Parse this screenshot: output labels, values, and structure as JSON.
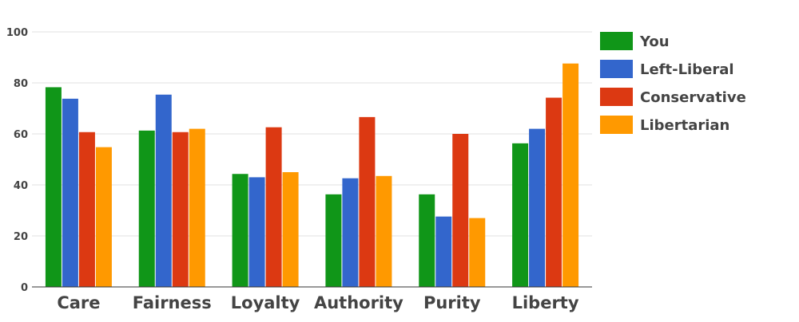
{
  "chart_data": {
    "type": "bar",
    "title": "",
    "xlabel": "",
    "ylabel": "",
    "ylim": [
      0,
      100
    ],
    "yticks": [
      0,
      20,
      40,
      60,
      80,
      100
    ],
    "grid": true,
    "legend_position": "right",
    "categories": [
      "Care",
      "Fairness",
      "Loyalty",
      "Authority",
      "Purity",
      "Liberty"
    ],
    "series": [
      {
        "name": "You",
        "color": "#109618",
        "values": [
          78.3,
          61.3,
          44.3,
          36.3,
          36.3,
          56.3
        ]
      },
      {
        "name": "Left-Liberal",
        "color": "#3366cc",
        "values": [
          73.8,
          75.4,
          43.0,
          42.6,
          27.6,
          62.0
        ]
      },
      {
        "name": "Conservative",
        "color": "#dc3912",
        "values": [
          60.7,
          60.7,
          62.6,
          66.6,
          60.0,
          74.2
        ]
      },
      {
        "name": "Libertarian",
        "color": "#ff9900",
        "values": [
          54.8,
          62.0,
          45.0,
          43.5,
          27.0,
          87.6
        ]
      }
    ]
  }
}
